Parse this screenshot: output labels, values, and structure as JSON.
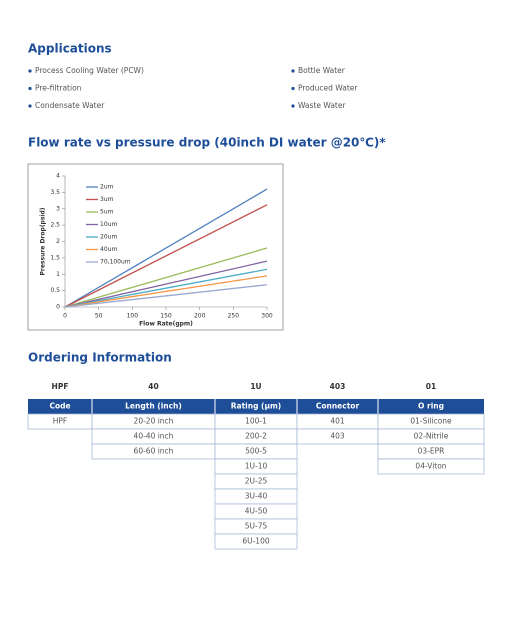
{
  "applications": {
    "title": "Applications",
    "left": [
      "Process Cooling Water (PCW)",
      "Pre-filtration",
      "Condensate Water"
    ],
    "right": [
      "Bottle Water",
      "Produced Water",
      "Waste Water"
    ]
  },
  "chart_title": "Flow rate vs pressure drop (40inch DI water @20℃)*",
  "chart_data": {
    "type": "line",
    "xlabel": "Flow Rate(gpm)",
    "ylabel": "Pressure Drop(psid)",
    "x": [
      0,
      300
    ],
    "xlim": [
      0,
      300
    ],
    "xticks": [
      0,
      50,
      100,
      150,
      200,
      250,
      300
    ],
    "ylim": [
      0,
      4
    ],
    "yticks": [
      0,
      0.5,
      1,
      1.5,
      2,
      2.5,
      3,
      3.5,
      4
    ],
    "series": [
      {
        "name": "2um",
        "color": "#4f81bd",
        "values": [
          0,
          3.6
        ]
      },
      {
        "name": "3um",
        "color": "#c0504d",
        "values": [
          0,
          3.12
        ]
      },
      {
        "name": "5um",
        "color": "#9bbb59",
        "values": [
          0,
          1.8
        ]
      },
      {
        "name": "10um",
        "color": "#8064a2",
        "values": [
          0,
          1.4
        ]
      },
      {
        "name": "20um",
        "color": "#4bacc6",
        "values": [
          0,
          1.15
        ]
      },
      {
        "name": "40um",
        "color": "#f79646",
        "values": [
          0,
          0.95
        ]
      },
      {
        "name": "70,100um",
        "color": "#98a9d0",
        "values": [
          0,
          0.68
        ]
      }
    ]
  },
  "ordering": {
    "title": "Ordering Information",
    "code_row": [
      "HPF",
      "40",
      "1U",
      "403",
      "01"
    ],
    "columns": [
      {
        "header": "Code",
        "items": [
          "HPF"
        ]
      },
      {
        "header": "Length (inch)",
        "items": [
          "20-20 inch",
          "40-40 inch",
          "60-60 inch"
        ]
      },
      {
        "header": "Rating (µm)",
        "items": [
          "100-1",
          "200-2",
          "500-5",
          "1U-10",
          "2U-25",
          "3U-40",
          "4U-50",
          "5U-75",
          "6U-100"
        ]
      },
      {
        "header": "Connector",
        "items": [
          "401",
          "403"
        ]
      },
      {
        "header": "O ring",
        "items": [
          "01-Silicone",
          "02-Nitrile",
          "03-EPR",
          "04-Viton"
        ]
      }
    ]
  }
}
